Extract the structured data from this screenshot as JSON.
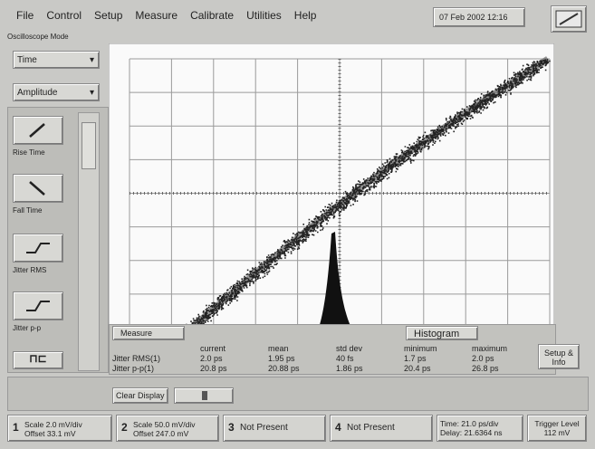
{
  "menu": [
    "File",
    "Control",
    "Setup",
    "Measure",
    "Calibrate",
    "Utilities",
    "Help"
  ],
  "datetime": "07 Feb 2002  12:16",
  "mode_label": "Oscilloscope Mode",
  "dropdowns": [
    "Time",
    "Amplitude"
  ],
  "measure_buttons": [
    "Rise Time",
    "Fall Time",
    "Jitter RMS",
    "Jitter p-p"
  ],
  "tabs": [
    "Measure",
    "Histogram"
  ],
  "measurements": {
    "headers": [
      "current",
      "mean",
      "std dev",
      "minimum",
      "maximum"
    ],
    "rows": [
      [
        "Jitter RMS(1)",
        "2.0 ps",
        "1.95 ps",
        "40 fs",
        "1.7 ps",
        "2.0 ps"
      ],
      [
        "Jitter p-p(1)",
        "20.8 ps",
        "20.88 ps",
        "1.86 ps",
        "20.4 ps",
        "26.8 ps"
      ]
    ]
  },
  "setup_button": "Setup & Info",
  "clear_button": "Clear Display",
  "channels": [
    {
      "number": "1",
      "lines": [
        "Scale 2.0 mV/div",
        "Offset 33.1 mV"
      ]
    },
    {
      "number": "2",
      "lines": [
        "Scale 50.0 mV/div",
        "Offset 247.0 mV"
      ]
    },
    {
      "number": "3",
      "lines": [
        "Not Present"
      ]
    },
    {
      "number": "4",
      "lines": [
        "Not Present"
      ]
    }
  ],
  "timebase": [
    "Time: 21.0 ps/div",
    "Delay: 21.6364 ns"
  ],
  "trigger": [
    "Trigger Level",
    "112 mV"
  ]
}
